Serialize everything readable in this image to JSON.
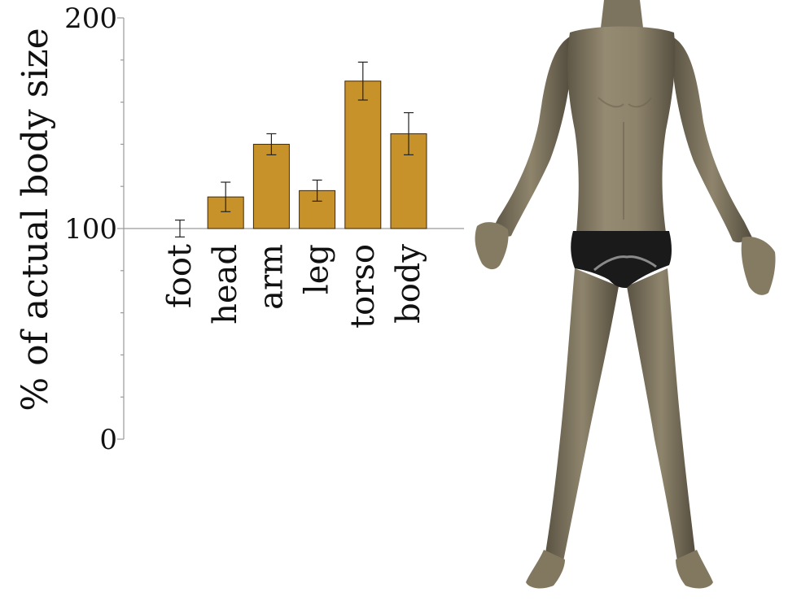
{
  "chart_data": {
    "type": "bar",
    "categories": [
      "foot",
      "head",
      "arm",
      "leg",
      "torso",
      "body"
    ],
    "values": [
      100,
      115,
      140,
      118,
      170,
      145
    ],
    "errors": [
      4,
      7,
      5,
      5,
      9,
      10
    ],
    "ylabel": "% of actual body size",
    "ylim": [
      0,
      200
    ],
    "yticks": [
      0,
      100,
      200
    ],
    "reference_line": 100,
    "grid": false,
    "bar_color": "#C8922A",
    "bar_edge_color": "#3a2a10"
  },
  "figure": {
    "illustration": "standing-human-body-3d-model"
  },
  "colors": {
    "skin": "#8a8068",
    "skin_shadow": "#5f5847",
    "underwear": "#1a1a1a"
  }
}
